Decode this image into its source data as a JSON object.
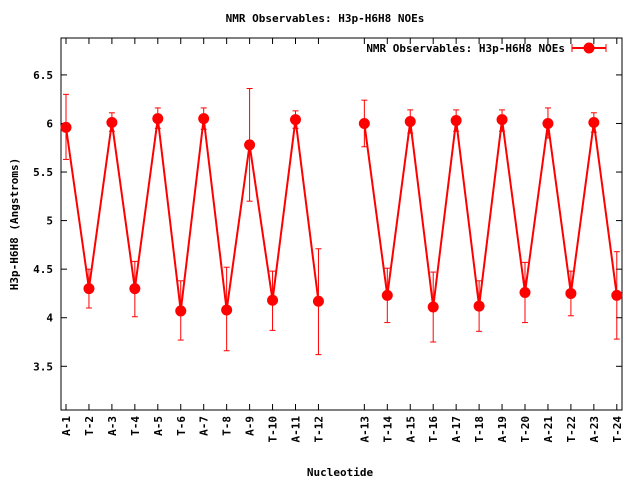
{
  "chart_data": {
    "type": "line",
    "title": "NMR Observables: H3p-H6H8 NOEs",
    "xlabel": "Nucleotide",
    "ylabel": "H3p-H6H8 (Angstroms)",
    "ylim": [
      3.05,
      6.88
    ],
    "yticks": [
      3.5,
      4,
      4.5,
      5,
      5.5,
      6,
      6.5
    ],
    "ytick_labels": [
      "3.5",
      "4",
      "4.5",
      "5",
      "5.5",
      "6",
      "6.5"
    ],
    "grid": false,
    "legend_position": "top-right",
    "series": [
      {
        "name": "NMR Observables: H3p-H6H8 NOEs",
        "color": "#ff0000",
        "segments": [
          {
            "categories": [
              "A-1",
              "T-2",
              "A-3",
              "T-4",
              "A-5",
              "T-6",
              "A-7",
              "T-8",
              "A-9",
              "T-10",
              "A-11",
              "T-12"
            ],
            "values": [
              5.96,
              4.3,
              6.01,
              4.3,
              6.05,
              4.07,
              6.05,
              4.08,
              5.78,
              4.18,
              6.04,
              4.17
            ],
            "err_low": [
              5.63,
              4.1,
              5.92,
              4.01,
              5.95,
              3.77,
              5.94,
              3.66,
              5.2,
              3.87,
              5.95,
              3.62
            ],
            "err_high": [
              6.3,
              4.5,
              6.11,
              4.58,
              6.16,
              4.38,
              6.16,
              4.52,
              6.36,
              4.48,
              6.13,
              4.71
            ]
          },
          {
            "categories": [
              "A-13",
              "T-14",
              "A-15",
              "T-16",
              "A-17",
              "T-18",
              "A-19",
              "T-20",
              "A-21",
              "T-22",
              "A-23",
              "T-24"
            ],
            "values": [
              6.0,
              4.23,
              6.02,
              4.11,
              6.03,
              4.12,
              6.04,
              4.26,
              6.0,
              4.25,
              6.01,
              4.23
            ],
            "err_low": [
              5.76,
              3.95,
              5.9,
              3.75,
              5.92,
              3.86,
              5.92,
              3.95,
              5.85,
              4.02,
              5.91,
              3.78
            ],
            "err_high": [
              6.24,
              4.51,
              6.14,
              4.47,
              6.14,
              4.38,
              6.14,
              4.57,
              6.16,
              4.48,
              6.11,
              4.68
            ]
          }
        ]
      }
    ]
  }
}
